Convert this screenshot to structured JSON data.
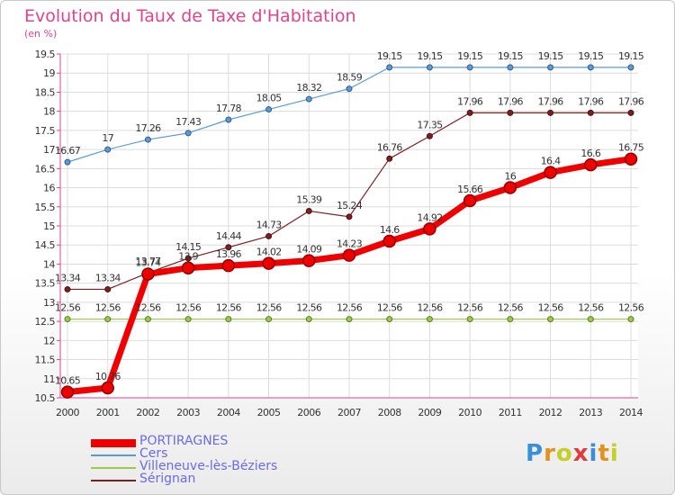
{
  "title": "Evolution du Taux de Taxe d'Habitation",
  "subtitle": "(en %)",
  "logo": {
    "letters": [
      {
        "ch": "P",
        "color": "#3a8fd8"
      },
      {
        "ch": "r",
        "color": "#e2921e"
      },
      {
        "ch": "o",
        "color": "#c4cf2a"
      },
      {
        "ch": "x",
        "color": "#e03a3a"
      },
      {
        "ch": "i",
        "color": "#3a8fd8"
      },
      {
        "ch": "t",
        "color": "#e2921e"
      },
      {
        "ch": "i",
        "color": "#c4cf2a"
      }
    ]
  },
  "chart_data": {
    "type": "line",
    "title": "Evolution du Taux de Taxe d'Habitation",
    "ylabel": "(en %)",
    "xlabel": "",
    "x": [
      "2000",
      "2001",
      "2002",
      "2003",
      "2004",
      "2005",
      "2006",
      "2007",
      "2008",
      "2009",
      "2010",
      "2011",
      "2012",
      "2013",
      "2014"
    ],
    "ylim": [
      10.5,
      19.5
    ],
    "yticks": [
      10.5,
      11,
      11.5,
      12,
      12.5,
      13,
      13.5,
      14,
      14.5,
      15,
      15.5,
      16,
      16.5,
      17,
      17.5,
      18,
      18.5,
      19,
      19.5
    ],
    "grid": true,
    "legend_position": "bottom-left",
    "series": [
      {
        "name": "PORTIRAGNES",
        "color": "#ee0000",
        "emphasis": true,
        "values": [
          10.65,
          10.76,
          13.74,
          13.9,
          13.96,
          14.02,
          14.09,
          14.23,
          14.6,
          14.92,
          15.66,
          16,
          16.4,
          16.6,
          16.75
        ],
        "labels": [
          "10.65",
          "10.76",
          "13.74",
          "13.9",
          "13.96",
          "14.02",
          "14.09",
          "14.23",
          "14.6",
          "14.92",
          "15.66",
          "16",
          "16.4",
          "16.6",
          "16.75"
        ]
      },
      {
        "name": "Cers",
        "color": "#5b9bd5",
        "values": [
          16.67,
          17,
          17.26,
          17.43,
          17.78,
          18.05,
          18.32,
          18.59,
          19.15,
          19.15,
          19.15,
          19.15,
          19.15,
          19.15,
          19.15
        ],
        "labels": [
          "16.67",
          "17",
          "17.26",
          "17.43",
          "17.78",
          "18.05",
          "18.32",
          "18.59",
          "19.15",
          "19.15",
          "19.15",
          "19.15",
          "19.15",
          "19.15",
          "19.15"
        ]
      },
      {
        "name": "Villeneuve-lès-Béziers",
        "color": "#99cc44",
        "values": [
          12.56,
          12.56,
          12.56,
          12.56,
          12.56,
          12.56,
          12.56,
          12.56,
          12.56,
          12.56,
          12.56,
          12.56,
          12.56,
          12.56,
          12.56
        ],
        "labels": [
          "12.56",
          "12.56",
          "12.56",
          "12.56",
          "12.56",
          "12.56",
          "12.56",
          "12.56",
          "12.56",
          "12.56",
          "12.56",
          "12.56",
          "12.56",
          "12.56",
          "12.56"
        ]
      },
      {
        "name": "Sérignan",
        "color": "#7a2020",
        "values": [
          13.34,
          13.34,
          13.77,
          14.15,
          14.44,
          14.73,
          15.39,
          15.24,
          16.76,
          17.35,
          17.96,
          17.96,
          17.96,
          17.96,
          17.96
        ],
        "labels": [
          "13.34",
          "13.34",
          "13.77",
          "14.15",
          "14.44",
          "14.73",
          "15.39",
          "15.24",
          "16.76",
          "17.35",
          "17.96",
          "17.96",
          "17.96",
          "17.96",
          "17.96"
        ]
      }
    ]
  }
}
